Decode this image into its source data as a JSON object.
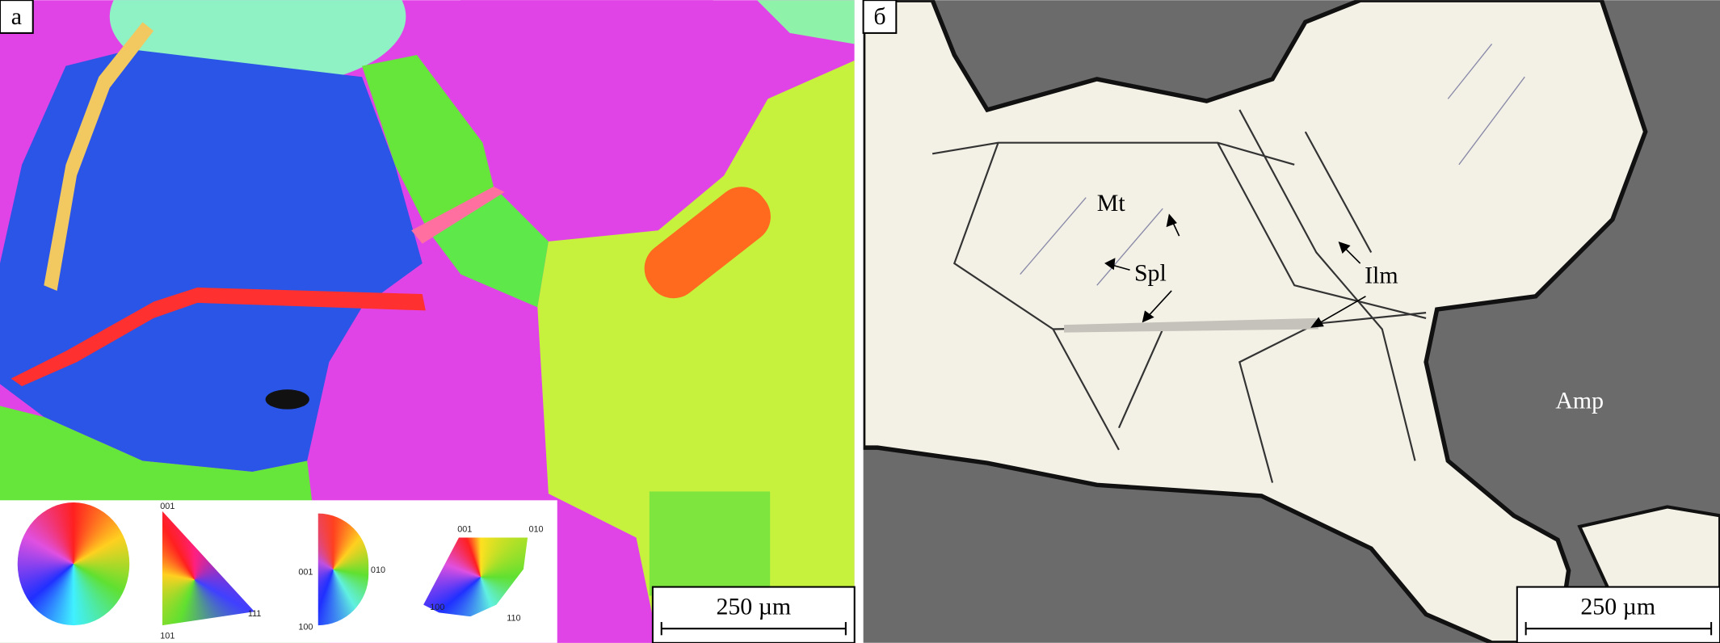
{
  "panel_a": {
    "label": "а",
    "scale_bar": "250 µm",
    "legend": {
      "triangle_labels": [
        "001",
        "101",
        "111"
      ],
      "half_disc_labels": [
        "001",
        "010",
        "100"
      ],
      "sector_labels": [
        "001",
        "010",
        "100",
        "110"
      ]
    },
    "colors": {
      "blue": "#2a55e6",
      "magenta": "#e044e6",
      "yellow_green": "#c6f23e",
      "green": "#66e63a",
      "orange": "#ff6a1e",
      "mint": "#8ef2c4"
    }
  },
  "panel_b": {
    "label": "б",
    "scale_bar": "250 µm",
    "minerals": {
      "mt": "Mt",
      "spl": "Spl",
      "ilm": "Ilm",
      "amp": "Amp"
    },
    "colors": {
      "magnetite": "#f3f1e6",
      "amphibole": "#6b6b6b"
    }
  }
}
